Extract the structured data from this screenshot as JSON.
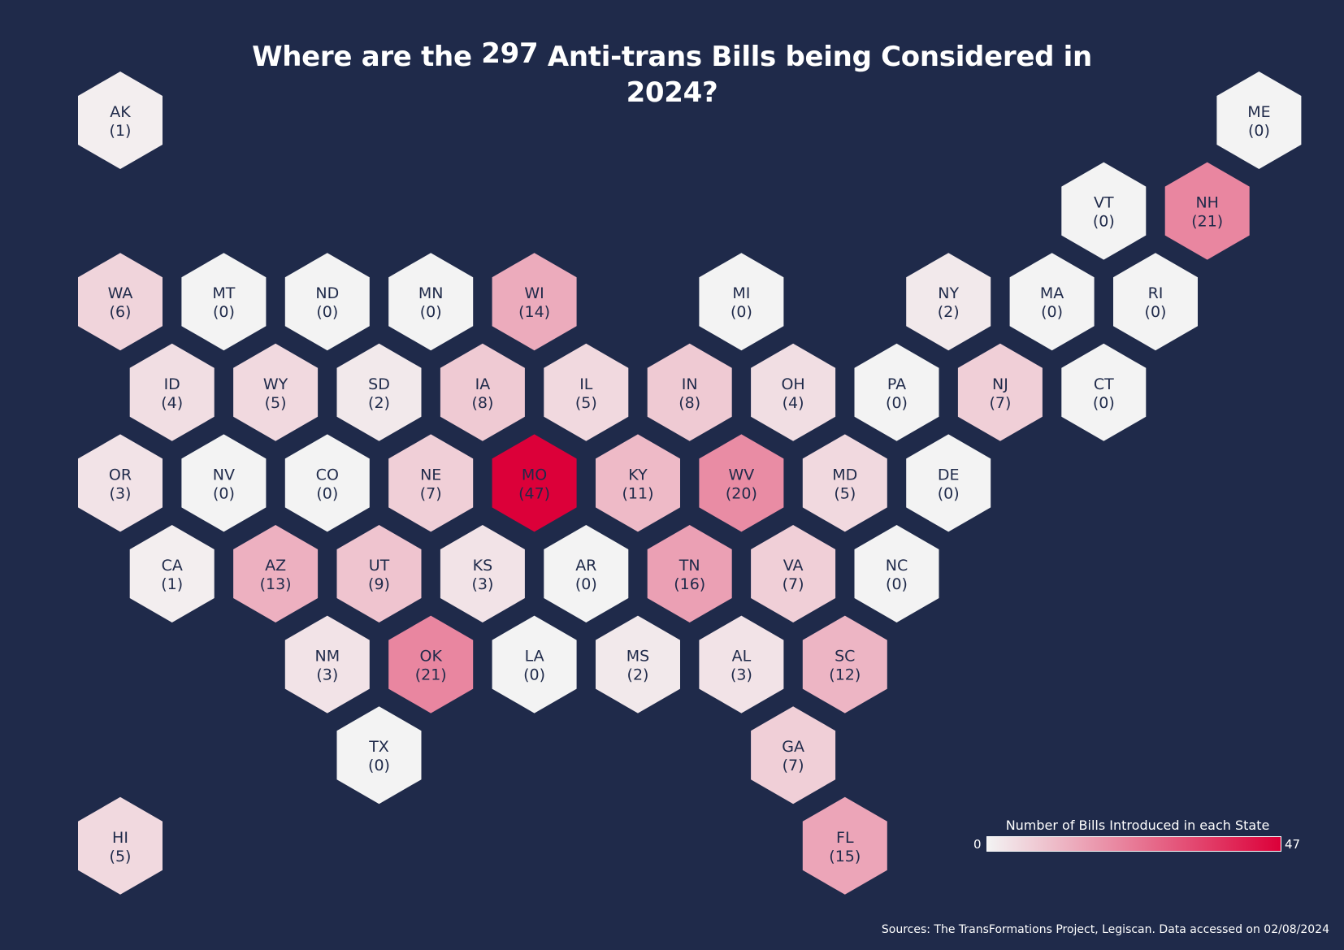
{
  "title": {
    "before": "Where are the ",
    "number": "297",
    "after": " Anti-trans Bills being Considered in 2024?"
  },
  "legend": {
    "title": "Number of Bills Introduced in each State",
    "min": "0",
    "max": "47",
    "low_color": "#f3f3f3",
    "high_color": "#dc0039"
  },
  "source": "Sources: The TransFormations Project, Legiscan.  Data accessed on 02/08/2024",
  "chart_data": {
    "type": "hex tile map",
    "value_range": [
      0,
      47
    ],
    "states": [
      {
        "abbr": "AK",
        "value": 1,
        "row": 0,
        "col": 0
      },
      {
        "abbr": "ME",
        "value": 0,
        "row": 0,
        "col": 11
      },
      {
        "abbr": "VT",
        "value": 0,
        "row": 1,
        "col": 9
      },
      {
        "abbr": "NH",
        "value": 21,
        "row": 1,
        "col": 10
      },
      {
        "abbr": "WA",
        "value": 6,
        "row": 2,
        "col": 0
      },
      {
        "abbr": "MT",
        "value": 0,
        "row": 2,
        "col": 1
      },
      {
        "abbr": "ND",
        "value": 0,
        "row": 2,
        "col": 2
      },
      {
        "abbr": "MN",
        "value": 0,
        "row": 2,
        "col": 3
      },
      {
        "abbr": "WI",
        "value": 14,
        "row": 2,
        "col": 4
      },
      {
        "abbr": "MI",
        "value": 0,
        "row": 2,
        "col": 6
      },
      {
        "abbr": "NY",
        "value": 2,
        "row": 2,
        "col": 8
      },
      {
        "abbr": "MA",
        "value": 0,
        "row": 2,
        "col": 9
      },
      {
        "abbr": "RI",
        "value": 0,
        "row": 2,
        "col": 10
      },
      {
        "abbr": "ID",
        "value": 4,
        "row": 3,
        "col": 0
      },
      {
        "abbr": "WY",
        "value": 5,
        "row": 3,
        "col": 1
      },
      {
        "abbr": "SD",
        "value": 2,
        "row": 3,
        "col": 2
      },
      {
        "abbr": "IA",
        "value": 8,
        "row": 3,
        "col": 3
      },
      {
        "abbr": "IL",
        "value": 5,
        "row": 3,
        "col": 4
      },
      {
        "abbr": "IN",
        "value": 8,
        "row": 3,
        "col": 5
      },
      {
        "abbr": "OH",
        "value": 4,
        "row": 3,
        "col": 6
      },
      {
        "abbr": "PA",
        "value": 0,
        "row": 3,
        "col": 7
      },
      {
        "abbr": "NJ",
        "value": 7,
        "row": 3,
        "col": 8
      },
      {
        "abbr": "CT",
        "value": 0,
        "row": 3,
        "col": 9
      },
      {
        "abbr": "OR",
        "value": 3,
        "row": 4,
        "col": 0
      },
      {
        "abbr": "NV",
        "value": 0,
        "row": 4,
        "col": 1
      },
      {
        "abbr": "CO",
        "value": 0,
        "row": 4,
        "col": 2
      },
      {
        "abbr": "NE",
        "value": 7,
        "row": 4,
        "col": 3
      },
      {
        "abbr": "MO",
        "value": 47,
        "row": 4,
        "col": 4
      },
      {
        "abbr": "KY",
        "value": 11,
        "row": 4,
        "col": 5
      },
      {
        "abbr": "WV",
        "value": 20,
        "row": 4,
        "col": 6
      },
      {
        "abbr": "MD",
        "value": 5,
        "row": 4,
        "col": 7
      },
      {
        "abbr": "DE",
        "value": 0,
        "row": 4,
        "col": 8
      },
      {
        "abbr": "CA",
        "value": 1,
        "row": 5,
        "col": 0
      },
      {
        "abbr": "AZ",
        "value": 13,
        "row": 5,
        "col": 1
      },
      {
        "abbr": "UT",
        "value": 9,
        "row": 5,
        "col": 2
      },
      {
        "abbr": "KS",
        "value": 3,
        "row": 5,
        "col": 3
      },
      {
        "abbr": "AR",
        "value": 0,
        "row": 5,
        "col": 4
      },
      {
        "abbr": "TN",
        "value": 16,
        "row": 5,
        "col": 5
      },
      {
        "abbr": "VA",
        "value": 7,
        "row": 5,
        "col": 6
      },
      {
        "abbr": "NC",
        "value": 0,
        "row": 5,
        "col": 7
      },
      {
        "abbr": "NM",
        "value": 3,
        "row": 6,
        "col": 2
      },
      {
        "abbr": "OK",
        "value": 21,
        "row": 6,
        "col": 3
      },
      {
        "abbr": "LA",
        "value": 0,
        "row": 6,
        "col": 4
      },
      {
        "abbr": "MS",
        "value": 2,
        "row": 6,
        "col": 5
      },
      {
        "abbr": "AL",
        "value": 3,
        "row": 6,
        "col": 6
      },
      {
        "abbr": "SC",
        "value": 12,
        "row": 6,
        "col": 7
      },
      {
        "abbr": "TX",
        "value": 0,
        "row": 7,
        "col": 2
      },
      {
        "abbr": "GA",
        "value": 7,
        "row": 7,
        "col": 6
      },
      {
        "abbr": "HI",
        "value": 5,
        "row": 8,
        "col": 0
      },
      {
        "abbr": "FL",
        "value": 15,
        "row": 8,
        "col": 7
      }
    ]
  }
}
